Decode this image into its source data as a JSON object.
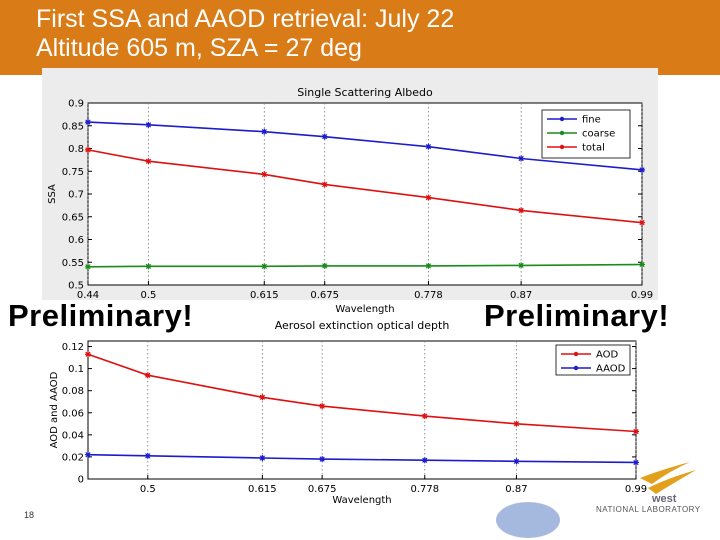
{
  "slide": {
    "title_line1": "First SSA and AAOD retrieval:  July 22",
    "title_line2": "Altitude 605 m, SZA = 27 deg",
    "watermark_left": "Preliminary!",
    "watermark_right": "Preliminary!",
    "slide_number": "18",
    "lab_name_partial": "NATIONAL LABORATORY",
    "lab_name_fragment": "west",
    "accent_color": "#d97b16"
  },
  "chart_data": [
    {
      "type": "line",
      "title": "Single Scattering Albedo",
      "xlabel": "Wavelength",
      "ylabel": "SSA",
      "x": [
        0.44,
        0.5,
        0.615,
        0.675,
        0.778,
        0.87,
        0.99
      ],
      "x_tick_labels": [
        "0.44",
        "0.5",
        "0.615",
        "0.675",
        "0.778",
        "0.87",
        "0.99"
      ],
      "xlim": [
        0.44,
        0.99
      ],
      "ylim": [
        0.5,
        0.9
      ],
      "y_tick_labels": [
        "0.5",
        "0.55",
        "0.6",
        "0.65",
        "0.7",
        "0.75",
        "0.8",
        "0.85",
        "0.9"
      ],
      "grid": "vertical dotted at x ticks",
      "legend_position": "top-right",
      "series": [
        {
          "name": "fine",
          "color": "#1c1ccc",
          "values": [
            0.858,
            0.852,
            0.837,
            0.826,
            0.804,
            0.778,
            0.753
          ]
        },
        {
          "name": "coarse",
          "color": "#1a8c1a",
          "values": [
            0.54,
            0.541,
            0.541,
            0.542,
            0.542,
            0.543,
            0.545
          ]
        },
        {
          "name": "total",
          "color": "#dd1111",
          "values": [
            0.797,
            0.772,
            0.743,
            0.721,
            0.692,
            0.664,
            0.637
          ]
        }
      ]
    },
    {
      "type": "line",
      "title": "Aerosol extinction optical depth",
      "xlabel": "Wavelength",
      "ylabel": "AOD and AAOD",
      "x": [
        0.44,
        0.5,
        0.615,
        0.675,
        0.778,
        0.87,
        0.99
      ],
      "x_tick_labels": [
        "0.5",
        "0.615",
        "0.675",
        "0.778",
        "0.87",
        "0.99"
      ],
      "x_tick_values": [
        0.5,
        0.615,
        0.675,
        0.778,
        0.87,
        0.99
      ],
      "xlim": [
        0.44,
        0.99
      ],
      "ylim": [
        0,
        0.125
      ],
      "y_tick_labels": [
        "0",
        "0.02",
        "0.04",
        "0.06",
        "0.08",
        "0.1",
        "0.12"
      ],
      "grid": "vertical dotted at x ticks",
      "legend_position": "top-right",
      "series": [
        {
          "name": "AOD",
          "color": "#dd1111",
          "values": [
            0.113,
            0.094,
            0.074,
            0.066,
            0.057,
            0.05,
            0.043
          ]
        },
        {
          "name": "AAOD",
          "color": "#1c1ccc",
          "values": [
            0.022,
            0.021,
            0.019,
            0.018,
            0.017,
            0.016,
            0.015
          ]
        }
      ]
    }
  ]
}
